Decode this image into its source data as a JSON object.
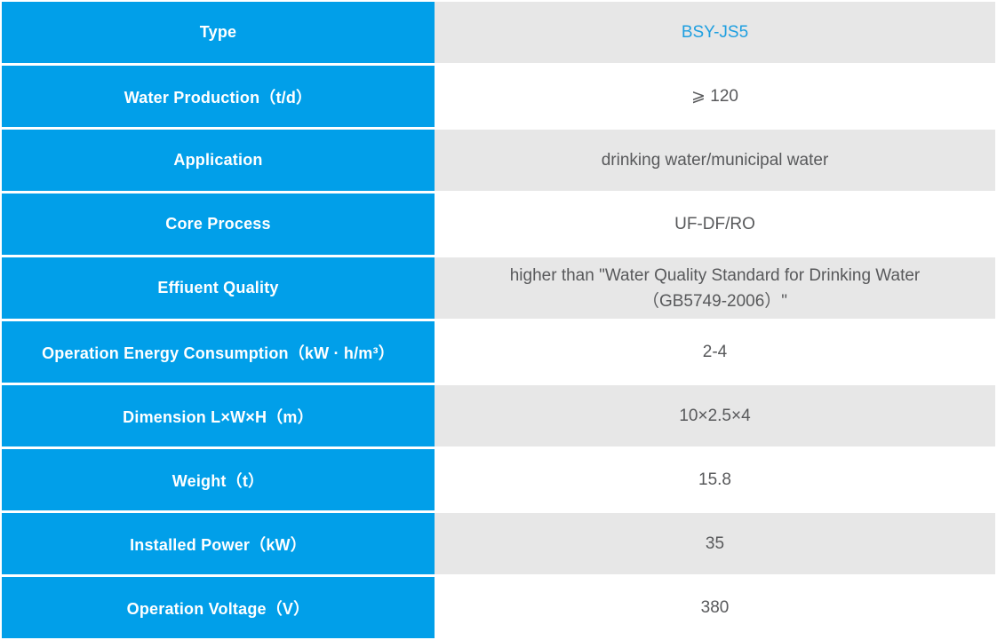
{
  "table": {
    "colors": {
      "accent_blue": "#019FE9",
      "row_alt_gray": "#E7E7E7",
      "value_text": "#58595B",
      "model_text_blue": "#1E9FE0"
    },
    "rows": [
      {
        "label": "Type",
        "value": "BSY-JS5",
        "value_accent": true
      },
      {
        "label": "Water Production（t/d）",
        "value": "⩾ 120"
      },
      {
        "label": "Application",
        "value": "drinking water/municipal water"
      },
      {
        "label": "Core Process",
        "value": "UF-DF/RO"
      },
      {
        "label": "Effiuent Quality",
        "value": "higher than \"Water Quality Standard for Drinking Water（GB5749-2006）\""
      },
      {
        "label": "Operation Energy Consumption（kW · h/m³）",
        "value": "2-4"
      },
      {
        "label": "Dimension L×W×H（m）",
        "value": "10×2.5×4"
      },
      {
        "label": "Weight（t）",
        "value": "15.8"
      },
      {
        "label": "Installed Power（kW）",
        "value": "35"
      },
      {
        "label": "Operation Voltage（V）",
        "value": "380"
      }
    ]
  }
}
